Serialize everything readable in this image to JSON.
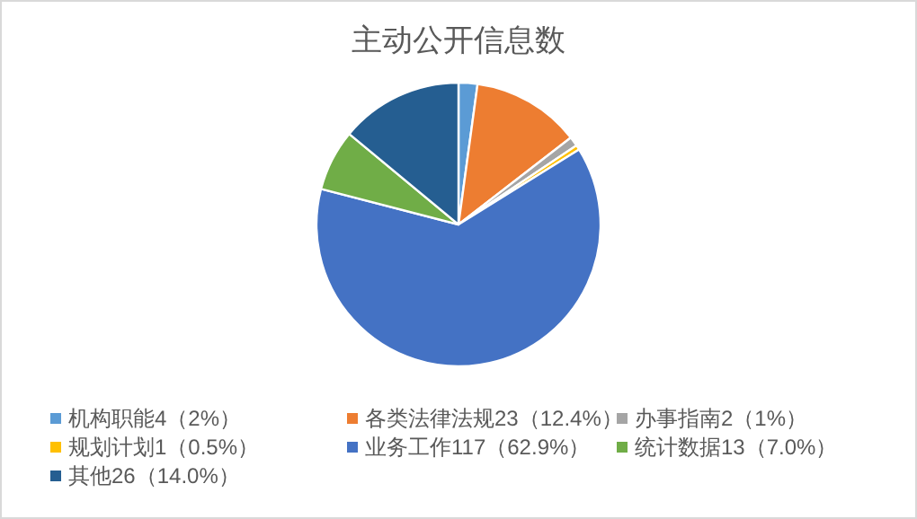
{
  "chart_data": {
    "type": "pie",
    "title": "主动公开信息数",
    "categories": [
      "机构职能4（2%）",
      "各类法律法规23（12.4%）",
      "办事指南2（1%）",
      "规划计划1（0.5%）",
      "业务工作117（62.9%）",
      "统计数据13（7.0%）",
      "其他26（14.0%）"
    ],
    "values": [
      4,
      23,
      2,
      1,
      117,
      13,
      26
    ],
    "colors": [
      "#5b9bd5",
      "#ed7d31",
      "#a5a5a5",
      "#ffc000",
      "#4472c4",
      "#70ad47",
      "#255e91"
    ],
    "legend": "bottom"
  }
}
